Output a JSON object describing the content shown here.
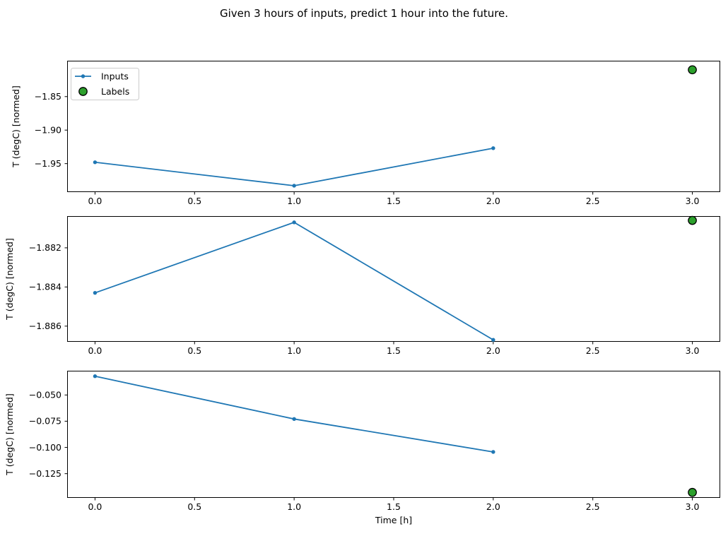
{
  "figure": {
    "title": "Given 3 hours of inputs, predict 1 hour into the future."
  },
  "chart_data": {
    "type": "line",
    "title": "Given 3 hours of inputs, predict 1 hour into the future.",
    "xlabel": "Time [h]",
    "ylabel": "T (degC) [normed]",
    "grid": false,
    "legend": {
      "position": "upper left",
      "entries": [
        {
          "label": "Inputs",
          "marker": "line-with-dot",
          "color": "#1f77b4"
        },
        {
          "label": "Labels",
          "marker": "circle",
          "color": "#2ca02c",
          "edge_color": "#000000"
        }
      ]
    },
    "x": {
      "lim": [
        -0.14,
        3.14
      ],
      "tick_values": [
        0,
        0.5,
        1,
        1.5,
        2,
        2.5,
        3
      ],
      "tick_labels": [
        "0.0",
        "0.5",
        "1.0",
        "1.5",
        "2.0",
        "2.5",
        "3.0"
      ]
    },
    "subplots": [
      {
        "ylabel": "T (degC) [normed]",
        "ylim": [
          -1.9925,
          -1.7965
        ],
        "ytick_values": [
          -1.85,
          -1.9,
          -1.95
        ],
        "ytick_labels": [
          "−1.85",
          "−1.90",
          "−1.95"
        ],
        "legend_visible": true,
        "series": [
          {
            "name": "Inputs",
            "x": [
              0,
              1,
              2
            ],
            "y": [
              -1.948,
              -1.983,
              -1.927
            ]
          },
          {
            "name": "Labels",
            "x": [
              3
            ],
            "y": [
              -1.81
            ]
          }
        ]
      },
      {
        "ylabel": "T (degC) [normed]",
        "ylim": [
          -1.8868,
          -1.88038
        ],
        "ytick_values": [
          -1.882,
          -1.884,
          -1.886
        ],
        "ytick_labels": [
          "−1.882",
          "−1.884",
          "−1.886"
        ],
        "legend_visible": false,
        "series": [
          {
            "name": "Inputs",
            "x": [
              0,
              1,
              2
            ],
            "y": [
              -1.8843,
              -1.8807,
              -1.8867
            ]
          },
          {
            "name": "Labels",
            "x": [
              3
            ],
            "y": [
              -1.8806
            ]
          }
        ]
      },
      {
        "ylabel": "T (degC) [normed]",
        "ylim": [
          -0.1481,
          -0.0269
        ],
        "ytick_values": [
          -0.05,
          -0.075,
          -0.1,
          -0.125
        ],
        "ytick_labels": [
          "−0.050",
          "−0.075",
          "−0.100",
          "−0.125"
        ],
        "legend_visible": false,
        "series": [
          {
            "name": "Inputs",
            "x": [
              0,
              1,
              2
            ],
            "y": [
              -0.0321,
              -0.0729,
              -0.1043
            ]
          },
          {
            "name": "Labels",
            "x": [
              3
            ],
            "y": [
              -0.1429
            ]
          }
        ]
      }
    ]
  }
}
